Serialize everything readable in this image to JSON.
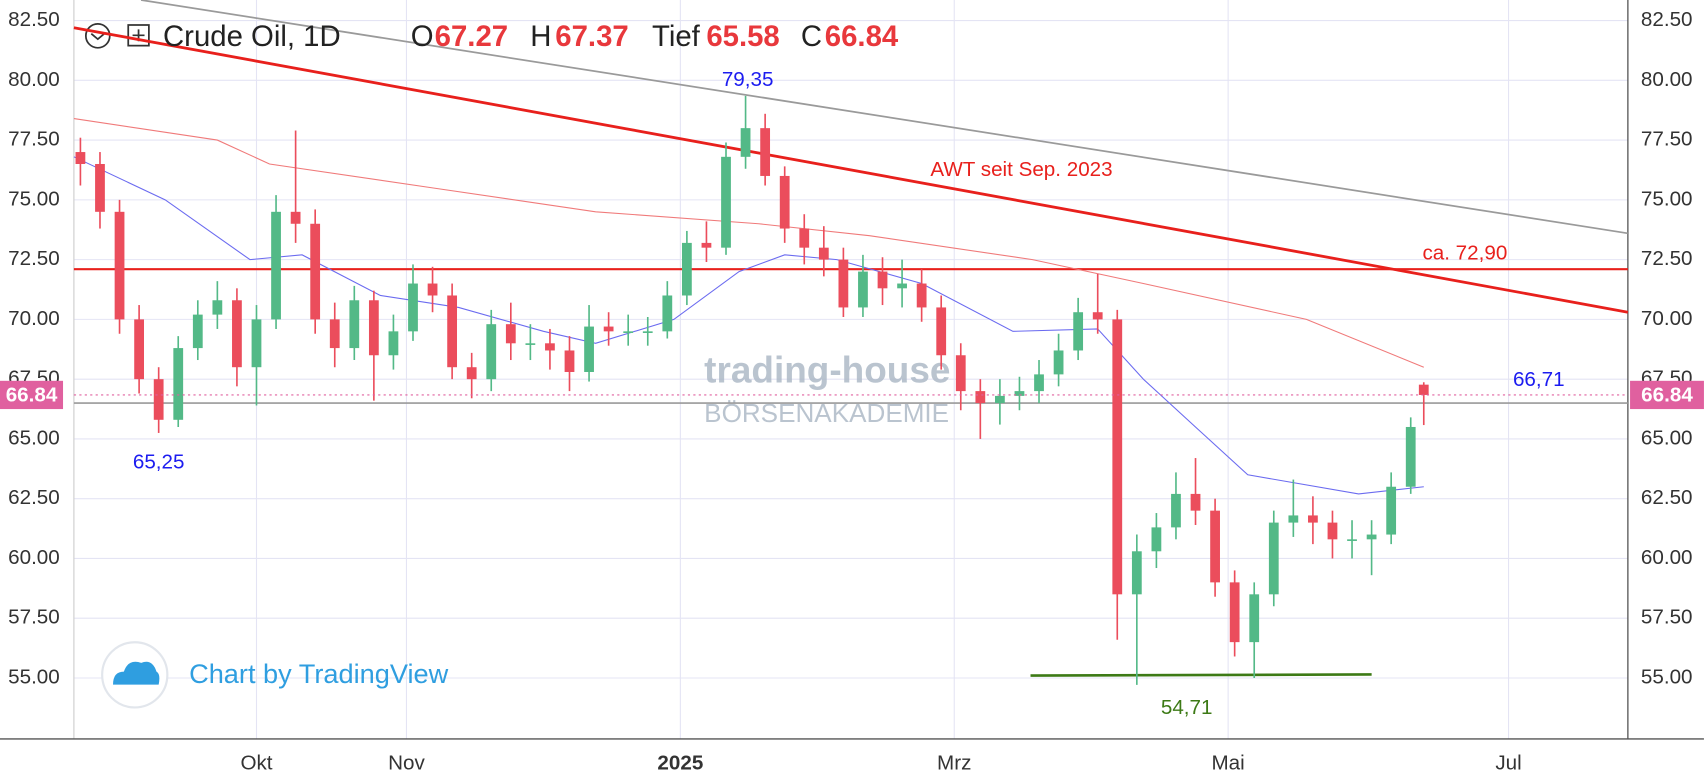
{
  "chart_data": {
    "type": "candlestick",
    "header": {
      "symbol": "Crude Oil, 1D",
      "open_label": "O",
      "high_label": "H",
      "low_label": "Tief",
      "close_label": "C"
    },
    "xlim": [
      0,
      238.3
    ],
    "xticks": [
      {
        "value": 28,
        "label": "Okt"
      },
      {
        "value": 51,
        "label": "Nov"
      },
      {
        "value": 93,
        "label": "2025"
      },
      {
        "value": 135,
        "label": "Mrz"
      },
      {
        "value": 177,
        "label": "Mai"
      },
      {
        "value": 220,
        "label": "Jul"
      }
    ],
    "ylim": [
      52.45,
      83.36
    ],
    "yticks": [
      {
        "value": 55,
        "label": "55.00"
      },
      {
        "value": 57.5,
        "label": "57.50"
      },
      {
        "value": 60,
        "label": "60.00"
      },
      {
        "value": 62.5,
        "label": "62.50"
      },
      {
        "value": 65,
        "label": "65.00"
      },
      {
        "value": 67.5,
        "label": "67.50"
      },
      {
        "value": 70,
        "label": "70.00"
      },
      {
        "value": 72.5,
        "label": "72.50"
      },
      {
        "value": 75,
        "label": "75.00"
      },
      {
        "value": 77.5,
        "label": "77.50"
      },
      {
        "value": 80,
        "label": "80.00"
      },
      {
        "value": 82.5,
        "label": "82.50"
      }
    ],
    "grid": true,
    "up_color": "#53b987",
    "down_color": "#eb4d5c",
    "candles": {
      "x": [
        1,
        4,
        7,
        10,
        13,
        16,
        19,
        22,
        25,
        28,
        31,
        34,
        37,
        40,
        43,
        46,
        49,
        52,
        55,
        58,
        61,
        64,
        67,
        70,
        73,
        76,
        79,
        82,
        85,
        88,
        91,
        94,
        97,
        100,
        103,
        106,
        109,
        112,
        115,
        118,
        121,
        124,
        127,
        130,
        133,
        136,
        139,
        142,
        145,
        148,
        151,
        154,
        157,
        160,
        163,
        166,
        169,
        172,
        175,
        178,
        181,
        184,
        187,
        190,
        193,
        196,
        199,
        202,
        205,
        207
      ],
      "open": [
        77,
        76.5,
        74.5,
        70,
        67.5,
        65.8,
        68.8,
        70.2,
        70.8,
        68,
        70,
        74.5,
        74,
        70,
        68.8,
        70.8,
        68.5,
        69.5,
        71.5,
        71,
        68,
        67.5,
        69.8,
        69,
        69,
        68.7,
        67.8,
        69.7,
        69.5,
        69.5,
        69.5,
        71,
        73.2,
        73,
        76.8,
        78,
        76,
        73.8,
        73,
        72.5,
        70.5,
        72,
        71.3,
        71.5,
        70.5,
        68.5,
        67,
        66.5,
        66.8,
        67,
        67.7,
        68.7,
        70.3,
        70,
        58.5,
        60.3,
        61.3,
        62.7,
        62,
        59,
        56.5,
        58.5,
        61.5,
        61.8,
        61.5,
        60.8,
        60.8,
        61,
        63,
        67.27
      ],
      "high": [
        77.6,
        77.0,
        75.0,
        70.6,
        68.0,
        69.3,
        70.8,
        71.6,
        71.3,
        70.6,
        75.2,
        77.9,
        74.6,
        70.7,
        71.4,
        71.2,
        70.2,
        72.3,
        72.2,
        71.5,
        68.6,
        70.4,
        70.7,
        69.8,
        69.6,
        69.3,
        70.6,
        70.3,
        70.2,
        70.1,
        71.6,
        73.7,
        74.1,
        77.4,
        79.35,
        78.6,
        76.4,
        74.4,
        73.9,
        73.0,
        72.7,
        72.6,
        72.5,
        72.1,
        71.0,
        69.0,
        67.5,
        67.5,
        67.6,
        68.3,
        69.4,
        70.9,
        71.9,
        70.4,
        61.0,
        61.9,
        63.6,
        64.2,
        62.5,
        59.5,
        59.0,
        62.0,
        63.3,
        62.6,
        62.0,
        61.6,
        61.6,
        63.6,
        65.9,
        67.37
      ],
      "low": [
        75.6,
        73.8,
        69.4,
        66.9,
        65.25,
        65.5,
        68.3,
        69.6,
        67.2,
        66.4,
        69.6,
        73.2,
        69.4,
        68.0,
        68.3,
        66.6,
        67.9,
        69.1,
        70.3,
        67.5,
        66.7,
        67.0,
        68.3,
        68.3,
        67.9,
        67.0,
        67.4,
        68.9,
        68.9,
        68.9,
        69.2,
        70.6,
        72.4,
        72.7,
        76.3,
        75.6,
        73.2,
        72.3,
        71.8,
        70.1,
        70.1,
        70.6,
        70.5,
        69.9,
        67.9,
        66.2,
        65.0,
        65.6,
        66.2,
        66.5,
        67.2,
        68.3,
        69.4,
        56.6,
        54.71,
        59.6,
        60.8,
        61.4,
        58.4,
        55.9,
        55.0,
        58.0,
        60.9,
        60.6,
        60.0,
        60.0,
        59.3,
        60.6,
        62.7,
        65.58
      ],
      "close": [
        76.5,
        74.5,
        70,
        67.5,
        65.8,
        68.8,
        70.2,
        70.8,
        68,
        70,
        74.5,
        74,
        70,
        68.8,
        70.8,
        68.5,
        69.5,
        71.5,
        71,
        68,
        67.5,
        69.8,
        69,
        69,
        68.7,
        67.8,
        69.7,
        69.5,
        69.5,
        69.5,
        71,
        73.2,
        73,
        76.8,
        78,
        76,
        73.8,
        73,
        72.5,
        70.5,
        72,
        71.3,
        71.5,
        70.5,
        68.5,
        67,
        66.5,
        66.8,
        67,
        67.7,
        68.7,
        70.3,
        70,
        58.5,
        60.3,
        61.3,
        62.7,
        62,
        59,
        56.5,
        58.5,
        61.5,
        61.8,
        61.5,
        60.8,
        60.8,
        61,
        63,
        65.5,
        66.84
      ]
    },
    "moving_averages": [
      {
        "color": "#f07a7a",
        "x": [
          0,
          22,
          30,
          55,
          80,
          105,
          122,
          147,
          164,
          189,
          207
        ],
        "values": [
          78.4,
          77.5,
          76.5,
          75.5,
          74.5,
          74,
          73.5,
          72.5,
          71.5,
          70,
          68
        ]
      },
      {
        "color": "#6b6bf0",
        "x": [
          0,
          14,
          27,
          35,
          47,
          59,
          72,
          80,
          92,
          102,
          109,
          117,
          130,
          144,
          157,
          164,
          172,
          180,
          197,
          207
        ],
        "values": [
          76.8,
          75,
          72.5,
          72.7,
          71,
          70.5,
          69.5,
          69,
          70,
          72,
          72.7,
          72.5,
          71.5,
          69.5,
          69.6,
          67.5,
          65.5,
          63.5,
          62.7,
          63
        ]
      }
    ],
    "trendlines": [
      {
        "color": "#e8201c",
        "x": [
          0,
          238.3
        ],
        "values": [
          82.2,
          70.3
        ]
      },
      {
        "color": "#9a9a9a",
        "x": [
          10.3,
          238.3
        ],
        "values": [
          83.36,
          73.6
        ]
      },
      {
        "color": "#3d7a16",
        "x": [
          146.7,
          199
        ],
        "values": [
          55.1,
          55.15
        ]
      }
    ],
    "hlines": [
      {
        "value": 72.1,
        "color": "#e8201c"
      },
      {
        "value": 66.5,
        "color": "#9a9a9a"
      }
    ],
    "price_tag_color": "#e0609f",
    "annotations": [
      {
        "text": "79,35",
        "color": "#1c1cf0"
      },
      {
        "text": "65,25",
        "color": "#1c1cf0"
      },
      {
        "text": "54,71",
        "color": "#3d7a16"
      },
      {
        "text": "AWT seit Sep. 2023",
        "color": "#e8201c"
      },
      {
        "text": "ca. 72,90",
        "color": "#e8201c"
      },
      {
        "text": "66,71",
        "color": "#1c1cf0"
      }
    ],
    "watermark": [
      "trading-house",
      "BÖRSENAKADEMIE"
    ],
    "credit": "Chart by TradingView"
  }
}
